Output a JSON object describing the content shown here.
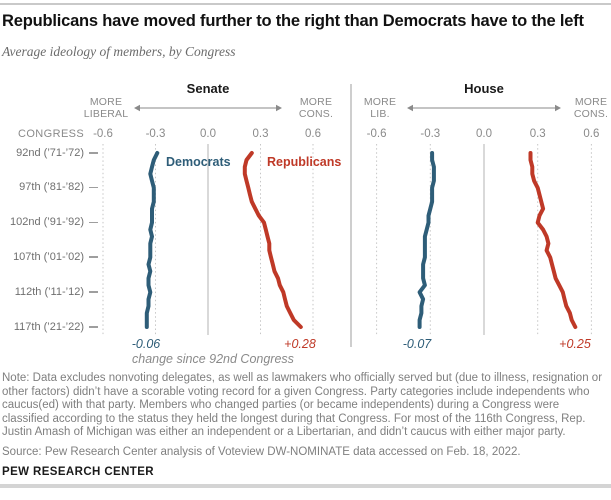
{
  "header": {
    "title": "Republicans have moved further to the right than Democrats have to the left",
    "subtitle": "Average ideology of members, by Congress"
  },
  "colors": {
    "democrat": "#2e5d78",
    "republican": "#bf3927",
    "grid_dotted": "#c6c6c6",
    "grid_center": "#b3b3b3",
    "divider": "#9e9e9e",
    "arrow": "#8a8a8a"
  },
  "chart": {
    "congress_axis_label": "CONGRESS",
    "row_labels": [
      "92nd (’71-’72)",
      "97th (’81-’82)",
      "102nd (’91-’92)",
      "107th (’01-’02)",
      "112th (’11-’12)",
      "117th (’21-’22)"
    ],
    "row_congresses": [
      92,
      97,
      102,
      107,
      112,
      117
    ],
    "senate": {
      "title": "Senate",
      "dir_left": [
        "MORE",
        "LIBERAL"
      ],
      "dir_right": [
        "MORE",
        "CONS."
      ],
      "legend_dem": "Democrats",
      "legend_rep": "Republicans"
    },
    "house": {
      "title": "House",
      "dir_left": [
        "MORE",
        "LIB."
      ],
      "dir_right": [
        "MORE",
        "CONS."
      ]
    },
    "change_caption": "change since 92nd Congress"
  },
  "chart_data": {
    "type": "line",
    "title": "Average ideology of members, by Congress",
    "value_axis_ticks_display": [
      "-0.6",
      "-0.3",
      "0.0",
      "0.3",
      "0.6"
    ],
    "value_axis_ticks": [
      -0.6,
      -0.3,
      0,
      0.3,
      0.6
    ],
    "value_axis_range": [
      -0.6,
      0.6
    ],
    "congresses": [
      92,
      93,
      94,
      95,
      96,
      97,
      98,
      99,
      100,
      101,
      102,
      103,
      104,
      105,
      106,
      107,
      108,
      109,
      110,
      111,
      112,
      113,
      114,
      115,
      116,
      117
    ],
    "panels": [
      {
        "name": "Senate",
        "series": [
          {
            "name": "Democrats",
            "change_label": "-0.06",
            "values": [
              -0.29,
              -0.31,
              -0.32,
              -0.33,
              -0.32,
              -0.31,
              -0.31,
              -0.31,
              -0.32,
              -0.32,
              -0.32,
              -0.33,
              -0.32,
              -0.33,
              -0.33,
              -0.33,
              -0.34,
              -0.33,
              -0.34,
              -0.34,
              -0.33,
              -0.34,
              -0.34,
              -0.35,
              -0.35,
              -0.35
            ]
          },
          {
            "name": "Republicans",
            "change_label": "+0.28",
            "values": [
              0.25,
              0.22,
              0.21,
              0.21,
              0.22,
              0.23,
              0.24,
              0.25,
              0.27,
              0.29,
              0.32,
              0.33,
              0.34,
              0.35,
              0.35,
              0.36,
              0.37,
              0.38,
              0.4,
              0.41,
              0.43,
              0.44,
              0.45,
              0.47,
              0.49,
              0.53
            ]
          }
        ]
      },
      {
        "name": "House",
        "series": [
          {
            "name": "Democrats",
            "change_label": "-0.07",
            "values": [
              -0.29,
              -0.29,
              -0.28,
              -0.28,
              -0.28,
              -0.29,
              -0.29,
              -0.29,
              -0.3,
              -0.31,
              -0.31,
              -0.32,
              -0.33,
              -0.33,
              -0.33,
              -0.33,
              -0.34,
              -0.34,
              -0.34,
              -0.33,
              -0.36,
              -0.34,
              -0.35,
              -0.35,
              -0.36,
              -0.36
            ]
          },
          {
            "name": "Republicans",
            "change_label": "+0.25",
            "values": [
              0.26,
              0.26,
              0.27,
              0.27,
              0.28,
              0.3,
              0.31,
              0.32,
              0.33,
              0.31,
              0.3,
              0.33,
              0.35,
              0.36,
              0.35,
              0.37,
              0.38,
              0.39,
              0.4,
              0.42,
              0.44,
              0.45,
              0.46,
              0.48,
              0.49,
              0.51
            ]
          }
        ]
      }
    ]
  },
  "footer": {
    "note": "Note: Data excludes nonvoting delegates, as well as lawmakers who officially served but (due to illness, resignation or other factors) didn’t have a scorable voting record for a given Congress. Party categories include independents who caucus(ed) with that party. Members who changed parties (or became independents) during a Congress were classified according to the status they held the longest during that Congress. For most of the 116th Congress, Rep. Justin Amash of Michigan was either an independent or a Libertarian, and didn’t caucus with either major party.",
    "source": "Source: Pew Research Center analysis of Voteview DW-NOMINATE data accessed on Feb. 18, 2022.",
    "brand": "PEW RESEARCH CENTER"
  }
}
